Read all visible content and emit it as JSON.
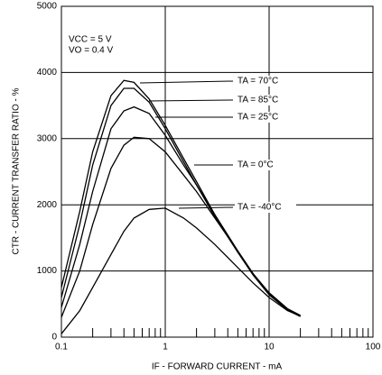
{
  "chart_data": {
    "type": "line",
    "xlabel": "IF - FORWARD CURRENT - mA",
    "ylabel": "CTR - CURRENT TRANSFER RATIO - %",
    "annotations": [
      "VCC = 5 V",
      "VO = 0.4 V"
    ],
    "x": [
      0.1,
      0.15,
      0.2,
      0.3,
      0.4,
      0.5,
      0.7,
      1,
      1.5,
      2,
      3,
      5,
      7,
      10,
      15,
      20
    ],
    "series": [
      {
        "name": "TA = 70°C",
        "color": "#000000",
        "values": [
          750,
          1900,
          2800,
          3650,
          3880,
          3850,
          3600,
          3200,
          2700,
          2350,
          1850,
          1300,
          950,
          650,
          420,
          320
        ]
      },
      {
        "name": "TA = 85°C",
        "color": "#000000",
        "values": [
          600,
          1700,
          2600,
          3500,
          3760,
          3760,
          3550,
          3150,
          2650,
          2300,
          1820,
          1280,
          940,
          640,
          410,
          310
        ]
      },
      {
        "name": "TA = 25°C",
        "color": "#000000",
        "values": [
          450,
          1400,
          2200,
          3150,
          3420,
          3480,
          3380,
          3050,
          2600,
          2300,
          1850,
          1300,
          960,
          650,
          420,
          320
        ]
      },
      {
        "name": "TA = 0°C",
        "color": "#000000",
        "values": [
          300,
          1000,
          1700,
          2550,
          2900,
          3020,
          3000,
          2800,
          2450,
          2200,
          1800,
          1300,
          960,
          670,
          430,
          330
        ]
      },
      {
        "name": "TA = -40°C",
        "color": "#000000",
        "values": [
          50,
          400,
          750,
          1250,
          1600,
          1800,
          1930,
          1950,
          1800,
          1650,
          1400,
          1050,
          820,
          600,
          400,
          320
        ]
      }
    ],
    "xscale": "log",
    "xlim": [
      0.1,
      100
    ],
    "xticks": [
      0.1,
      1,
      10,
      100
    ],
    "xminorticks": [
      0.2,
      0.3,
      0.4,
      0.5,
      0.6,
      0.7,
      0.8,
      0.9,
      2,
      3,
      4,
      5,
      6,
      7,
      8,
      9,
      20,
      30,
      40,
      50,
      60,
      70,
      80,
      90
    ],
    "ylim": [
      0,
      5000
    ],
    "yticks": [
      0,
      1000,
      2000,
      3000,
      4000,
      5000
    ],
    "grid": true
  }
}
